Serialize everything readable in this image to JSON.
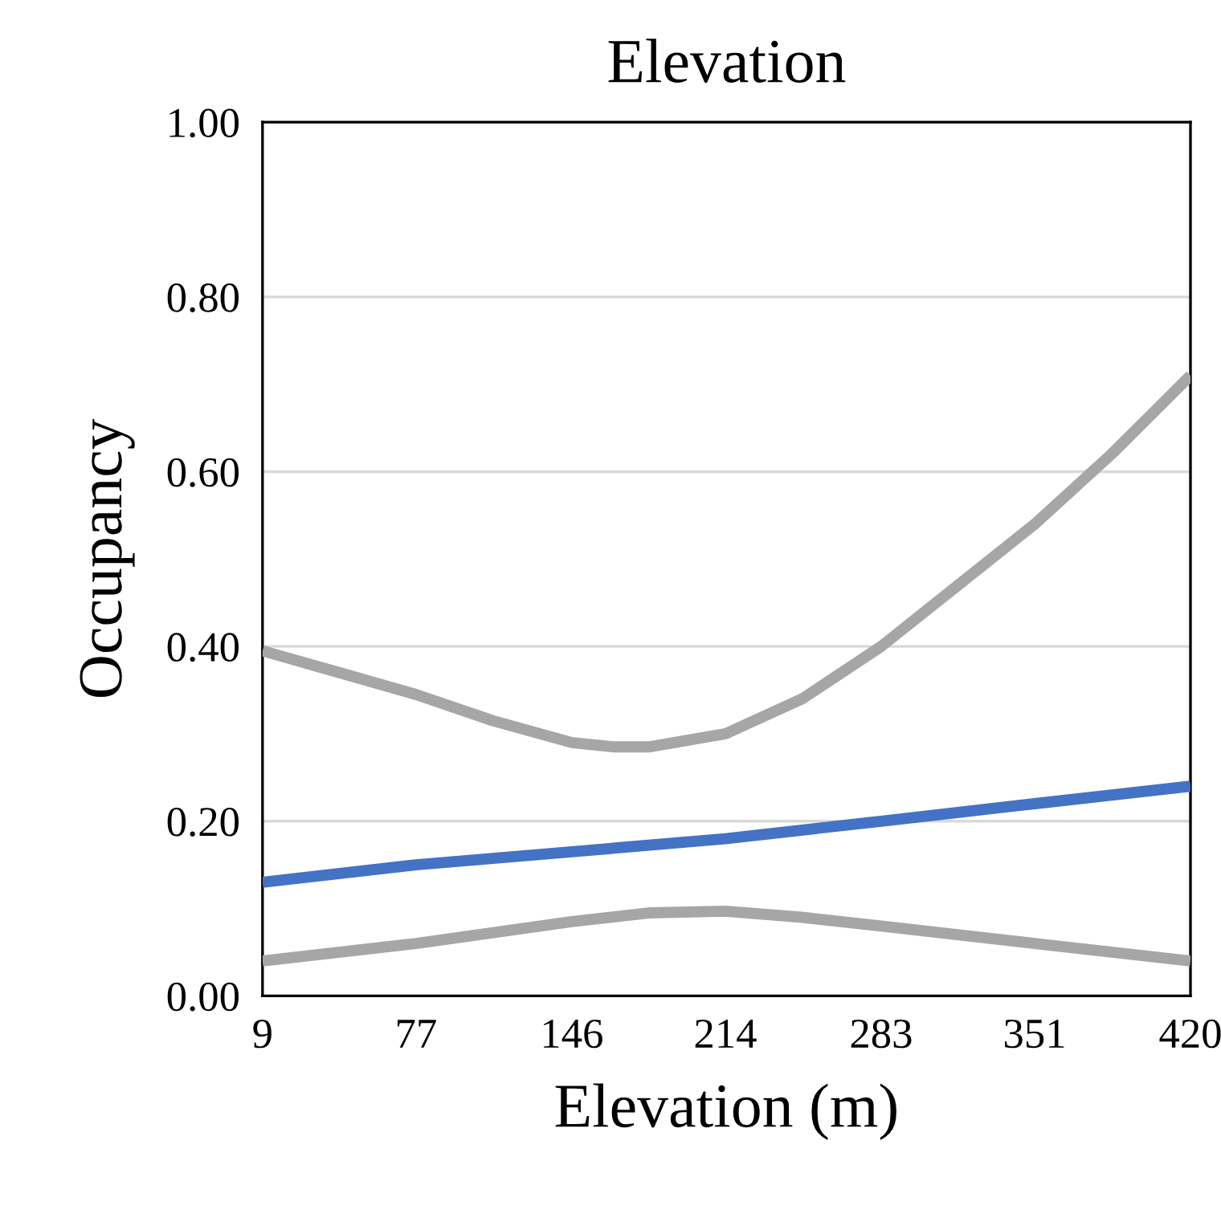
{
  "chart_data": {
    "type": "line",
    "title": "Elevation",
    "xlabel": "Elevation (m)",
    "ylabel": "Occupancy",
    "series": [
      {
        "color": "#a6a6a6",
        "x": [
          9,
          43,
          77,
          111,
          146,
          165,
          180,
          214,
          248,
          283,
          317,
          351,
          385,
          420
        ],
        "values": [
          0.395,
          0.37,
          0.345,
          0.315,
          0.29,
          0.285,
          0.285,
          0.3,
          0.34,
          0.4,
          0.47,
          0.54,
          0.62,
          0.71
        ]
      },
      {
        "color": "#a6a6a6",
        "x": [
          9,
          77,
          146,
          180,
          214,
          248,
          283,
          351,
          420
        ],
        "values": [
          0.04,
          0.06,
          0.085,
          0.095,
          0.097,
          0.09,
          0.08,
          0.06,
          0.04
        ]
      },
      {
        "color": "#4472c4",
        "x": [
          9,
          77,
          146,
          214,
          283,
          351,
          420
        ],
        "values": [
          0.13,
          0.15,
          0.165,
          0.18,
          0.2,
          0.22,
          0.24
        ]
      }
    ],
    "xlim": [
      9,
      420
    ],
    "xticks": [
      9,
      77,
      146,
      214,
      283,
      351,
      420
    ],
    "ylim": [
      0,
      1
    ],
    "yticks": [
      {
        "value": 0,
        "label": "0.00"
      },
      {
        "value": 0.2,
        "label": "0.20"
      },
      {
        "value": 0.4,
        "label": "0.40"
      },
      {
        "value": 0.6,
        "label": "0.60"
      },
      {
        "value": 0.8,
        "label": "0.80"
      },
      {
        "value": 1,
        "label": "1.00"
      }
    ],
    "grid": "y",
    "legend": false,
    "marker": "none",
    "line_style": "solid"
  }
}
